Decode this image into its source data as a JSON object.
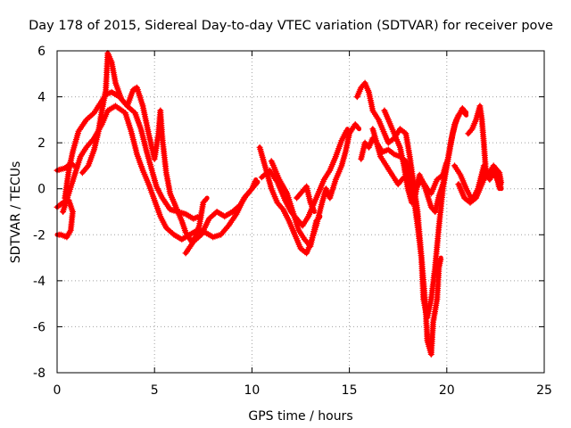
{
  "chart_data": {
    "type": "scatter",
    "title": "Day 178 of 2015, Sidereal Day-to-day VTEC variation (SDTVAR) for receiver pove",
    "xlabel": "GPS time / hours",
    "ylabel": "SDTVAR / TECUs",
    "xlim": [
      0,
      25
    ],
    "ylim": [
      -8,
      6
    ],
    "xticks": [
      0,
      5,
      10,
      15,
      20,
      25
    ],
    "yticks": [
      -8,
      -6,
      -4,
      -2,
      0,
      2,
      4,
      6
    ],
    "grid": true,
    "marker": "+",
    "color": "#ff0000",
    "series": [
      {
        "points": [
          [
            0,
            0.8
          ],
          [
            0.4,
            0.9
          ],
          [
            0.7,
            1.1
          ],
          [
            0.9,
            1.0
          ]
        ]
      },
      {
        "points": [
          [
            0,
            -0.8
          ],
          [
            0.3,
            -0.6
          ],
          [
            0.6,
            -0.5
          ],
          [
            0.8,
            -1.0
          ],
          [
            0.7,
            -1.8
          ],
          [
            0.5,
            -2.1
          ],
          [
            0.2,
            -2.0
          ],
          [
            0,
            -2.0
          ]
        ]
      },
      {
        "points": [
          [
            0.4,
            -0.4
          ],
          [
            0.6,
            0.8
          ],
          [
            0.8,
            1.6
          ],
          [
            1.1,
            2.5
          ],
          [
            1.5,
            3.0
          ],
          [
            1.9,
            3.3
          ],
          [
            2.2,
            3.7
          ],
          [
            2.5,
            4.1
          ],
          [
            2.8,
            4.2
          ],
          [
            3.2,
            4.0
          ],
          [
            3.6,
            3.6
          ],
          [
            4.0,
            3.3
          ],
          [
            4.3,
            2.6
          ],
          [
            4.6,
            1.6
          ],
          [
            4.9,
            0.7
          ],
          [
            5.1,
            0.1
          ],
          [
            5.4,
            -0.4
          ],
          [
            5.8,
            -0.9
          ],
          [
            6.2,
            -1.0
          ],
          [
            6.6,
            -1.1
          ],
          [
            7.0,
            -1.3
          ],
          [
            7.3,
            -1.2
          ]
        ]
      },
      {
        "points": [
          [
            0.3,
            -1.0
          ],
          [
            0.6,
            -0.2
          ],
          [
            0.9,
            0.6
          ],
          [
            1.2,
            1.4
          ],
          [
            1.5,
            1.8
          ],
          [
            1.9,
            2.2
          ],
          [
            2.3,
            2.8
          ],
          [
            2.6,
            3.4
          ],
          [
            3.0,
            3.6
          ],
          [
            3.5,
            3.3
          ],
          [
            3.8,
            2.5
          ],
          [
            4.1,
            1.5
          ],
          [
            4.4,
            0.8
          ],
          [
            4.7,
            0.2
          ],
          [
            5.0,
            -0.5
          ],
          [
            5.3,
            -1.2
          ],
          [
            5.6,
            -1.7
          ],
          [
            6.0,
            -2.0
          ],
          [
            6.4,
            -2.2
          ],
          [
            6.8,
            -2.0
          ],
          [
            7.2,
            -1.8
          ],
          [
            7.6,
            -1.9
          ],
          [
            8.0,
            -2.1
          ],
          [
            8.4,
            -2.0
          ],
          [
            8.8,
            -1.6
          ],
          [
            9.2,
            -1.1
          ],
          [
            9.6,
            -0.4
          ],
          [
            10.0,
            0.0
          ],
          [
            10.2,
            0.4
          ]
        ]
      },
      {
        "points": [
          [
            1.3,
            0.7
          ],
          [
            1.6,
            1.0
          ],
          [
            1.9,
            1.7
          ],
          [
            2.1,
            2.4
          ],
          [
            2.3,
            3.4
          ],
          [
            2.5,
            4.3
          ],
          [
            2.6,
            5.9
          ],
          [
            2.8,
            5.5
          ],
          [
            3.0,
            4.6
          ],
          [
            3.3,
            3.9
          ],
          [
            3.6,
            3.6
          ],
          [
            3.9,
            4.3
          ],
          [
            4.1,
            4.4
          ],
          [
            4.4,
            3.6
          ],
          [
            4.7,
            2.4
          ],
          [
            5.0,
            1.3
          ],
          [
            5.2,
            2.4
          ],
          [
            5.3,
            3.4
          ],
          [
            5.4,
            2.2
          ],
          [
            5.6,
            0.7
          ],
          [
            5.8,
            -0.2
          ],
          [
            6.1,
            -0.8
          ],
          [
            6.4,
            -1.4
          ],
          [
            6.6,
            -1.9
          ],
          [
            6.9,
            -2.3
          ],
          [
            7.1,
            -2.1
          ],
          [
            7.3,
            -1.6
          ],
          [
            7.5,
            -0.6
          ],
          [
            7.7,
            -0.4
          ]
        ]
      },
      {
        "points": [
          [
            6.6,
            -2.8
          ],
          [
            7.0,
            -2.3
          ],
          [
            7.4,
            -2.0
          ],
          [
            7.8,
            -1.3
          ],
          [
            8.2,
            -1.0
          ],
          [
            8.6,
            -1.2
          ],
          [
            9.0,
            -1.0
          ],
          [
            9.4,
            -0.7
          ],
          [
            9.7,
            -0.3
          ],
          [
            10.0,
            0.0
          ],
          [
            10.3,
            0.3
          ]
        ]
      },
      {
        "points": [
          [
            10.4,
            1.8
          ],
          [
            10.6,
            1.2
          ],
          [
            10.8,
            0.6
          ],
          [
            11.0,
            0.0
          ],
          [
            11.3,
            -0.6
          ],
          [
            11.6,
            -0.9
          ],
          [
            11.9,
            -1.4
          ],
          [
            12.2,
            -2.0
          ],
          [
            12.5,
            -2.6
          ],
          [
            12.8,
            -2.8
          ],
          [
            13.0,
            -2.4
          ],
          [
            13.3,
            -1.6
          ],
          [
            13.6,
            -0.6
          ],
          [
            13.8,
            0.0
          ],
          [
            14.0,
            -0.4
          ],
          [
            14.3,
            0.4
          ],
          [
            14.6,
            1.0
          ],
          [
            14.8,
            1.6
          ],
          [
            15.0,
            2.4
          ],
          [
            15.3,
            2.8
          ],
          [
            15.5,
            2.6
          ]
        ]
      },
      {
        "points": [
          [
            10.5,
            0.5
          ],
          [
            10.9,
            0.8
          ],
          [
            11.3,
            0.3
          ],
          [
            11.7,
            -0.5
          ],
          [
            12.0,
            -1.0
          ],
          [
            12.3,
            -1.3
          ],
          [
            12.6,
            -1.6
          ],
          [
            12.9,
            -1.2
          ],
          [
            13.1,
            -0.8
          ],
          [
            13.4,
            -0.2
          ],
          [
            13.7,
            0.4
          ],
          [
            14.0,
            0.8
          ],
          [
            14.3,
            1.4
          ],
          [
            14.6,
            2.1
          ],
          [
            14.9,
            2.6
          ]
        ]
      },
      {
        "points": [
          [
            11.0,
            1.2
          ],
          [
            11.4,
            0.4
          ],
          [
            11.8,
            -0.2
          ],
          [
            12.1,
            -1.0
          ],
          [
            12.4,
            -1.8
          ],
          [
            12.7,
            -2.2
          ],
          [
            13.0,
            -2.5
          ],
          [
            13.3,
            -1.4
          ],
          [
            13.5,
            -1.2
          ]
        ]
      },
      {
        "points": [
          [
            12.3,
            -0.4
          ],
          [
            12.6,
            -0.1
          ],
          [
            12.8,
            0.1
          ],
          [
            13.0,
            -0.6
          ],
          [
            13.2,
            -1.0
          ]
        ]
      },
      {
        "points": [
          [
            15.4,
            4.0
          ],
          [
            15.6,
            4.4
          ],
          [
            15.8,
            4.6
          ],
          [
            16.0,
            4.2
          ],
          [
            16.2,
            3.4
          ],
          [
            16.5,
            3.0
          ],
          [
            16.8,
            2.4
          ],
          [
            17.0,
            2.0
          ],
          [
            17.3,
            2.2
          ],
          [
            17.6,
            2.6
          ],
          [
            17.9,
            2.4
          ],
          [
            18.1,
            1.4
          ],
          [
            18.3,
            0.2
          ],
          [
            18.5,
            -1.0
          ],
          [
            18.7,
            -3.0
          ],
          [
            18.9,
            -5.0
          ],
          [
            19.0,
            -6.6
          ],
          [
            19.2,
            -7.2
          ],
          [
            19.3,
            -5.8
          ],
          [
            19.5,
            -4.8
          ],
          [
            19.6,
            -3.4
          ],
          [
            19.7,
            -3.0
          ]
        ]
      },
      {
        "points": [
          [
            15.6,
            1.3
          ],
          [
            15.8,
            2.0
          ],
          [
            16.0,
            1.8
          ],
          [
            16.2,
            2.2
          ],
          [
            16.4,
            2.0
          ],
          [
            16.7,
            1.6
          ],
          [
            17.0,
            1.7
          ],
          [
            17.3,
            1.5
          ],
          [
            17.6,
            1.4
          ],
          [
            17.9,
            1.2
          ],
          [
            18.1,
            0.4
          ],
          [
            18.3,
            -0.4
          ],
          [
            18.5,
            -1.6
          ],
          [
            18.7,
            -3.0
          ],
          [
            18.8,
            -4.8
          ],
          [
            19.0,
            -5.6
          ],
          [
            19.2,
            -4.8
          ],
          [
            19.4,
            -3.4
          ],
          [
            19.6,
            -1.6
          ],
          [
            19.8,
            0.0
          ],
          [
            20.0,
            1.0
          ],
          [
            20.2,
            2.0
          ],
          [
            20.4,
            2.8
          ],
          [
            20.6,
            3.2
          ],
          [
            20.8,
            3.4
          ],
          [
            21.0,
            3.2
          ]
        ]
      },
      {
        "points": [
          [
            16.8,
            3.4
          ],
          [
            17.0,
            3.0
          ],
          [
            17.3,
            2.4
          ],
          [
            17.6,
            1.8
          ],
          [
            17.8,
            1.0
          ],
          [
            18.0,
            0.0
          ],
          [
            18.2,
            -0.6
          ],
          [
            18.4,
            -0.2
          ],
          [
            18.6,
            0.6
          ],
          [
            18.9,
            0.0
          ],
          [
            19.2,
            -0.8
          ],
          [
            19.4,
            -1.0
          ],
          [
            19.6,
            -0.3
          ],
          [
            19.8,
            0.2
          ],
          [
            20.0,
            1.0
          ],
          [
            20.3,
            2.4
          ],
          [
            20.5,
            3.0
          ],
          [
            20.8,
            3.5
          ],
          [
            21.0,
            3.3
          ]
        ]
      },
      {
        "points": [
          [
            16.2,
            2.6
          ],
          [
            16.4,
            2.0
          ],
          [
            16.6,
            1.4
          ],
          [
            16.9,
            1.0
          ],
          [
            17.2,
            0.6
          ],
          [
            17.5,
            0.2
          ],
          [
            17.8,
            0.5
          ],
          [
            18.1,
            0.2
          ],
          [
            18.4,
            0.0
          ],
          [
            18.7,
            0.4
          ],
          [
            19.0,
            0.0
          ],
          [
            19.2,
            -0.2
          ],
          [
            19.5,
            0.4
          ],
          [
            19.8,
            0.6
          ],
          [
            20.0,
            1.2
          ]
        ]
      },
      {
        "points": [
          [
            20.6,
            0.2
          ],
          [
            20.9,
            -0.4
          ],
          [
            21.2,
            -0.6
          ],
          [
            21.5,
            -0.4
          ],
          [
            21.8,
            0.2
          ],
          [
            22.0,
            0.6
          ],
          [
            22.3,
            0.8
          ],
          [
            22.6,
            0.4
          ],
          [
            22.8,
            0.0
          ]
        ]
      },
      {
        "points": [
          [
            20.4,
            1.0
          ],
          [
            20.7,
            0.6
          ],
          [
            21.0,
            0.0
          ],
          [
            21.3,
            -0.5
          ],
          [
            21.6,
            0.0
          ],
          [
            21.9,
            1.0
          ],
          [
            22.1,
            0.6
          ],
          [
            22.4,
            1.0
          ],
          [
            22.7,
            0.7
          ],
          [
            22.8,
            0.2
          ]
        ]
      },
      {
        "points": [
          [
            21.1,
            2.4
          ],
          [
            21.3,
            2.6
          ],
          [
            21.5,
            3.0
          ],
          [
            21.7,
            3.6
          ],
          [
            21.8,
            3.0
          ],
          [
            21.9,
            2.0
          ],
          [
            22.0,
            0.8
          ],
          [
            22.2,
            0.4
          ],
          [
            22.5,
            0.8
          ],
          [
            22.7,
            0.0
          ]
        ]
      }
    ]
  }
}
